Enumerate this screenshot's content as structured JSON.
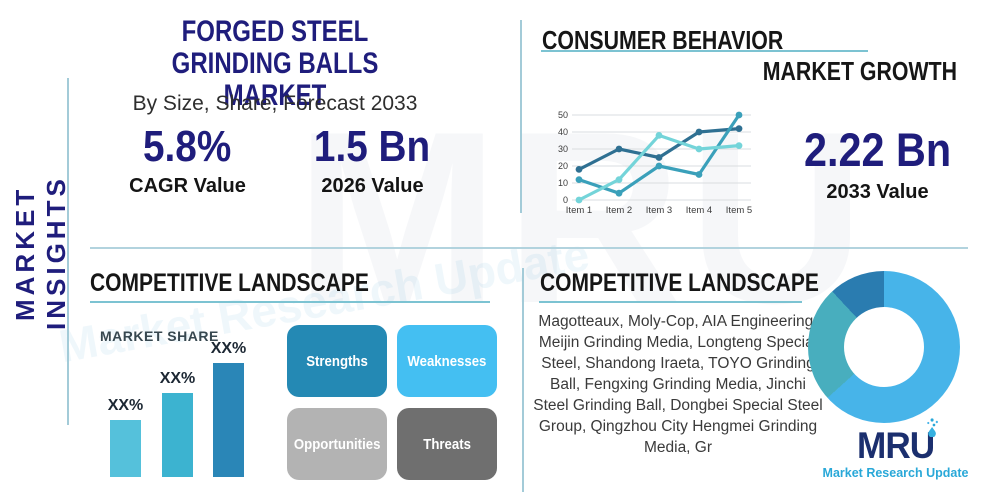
{
  "sidebar": {
    "vertical_label": "MARKET INSIGHTS"
  },
  "header": {
    "title_line1": "FORGED STEEL GRINDING BALLS",
    "title_line2": "MARKET",
    "subtitle": "By Size, Share, Forecast 2033"
  },
  "stats": {
    "cagr": {
      "value": "5.8%",
      "label": "CAGR Value"
    },
    "base_year": {
      "value": "1.5 Bn",
      "label": "2026 Value"
    },
    "forecast": {
      "value": "2.22 Bn",
      "label": "2033 Value"
    }
  },
  "sections": {
    "consumer_behavior": "CONSUMER BEHAVIOR",
    "market_growth": "MARKET GROWTH",
    "competitive_landscape_left": "COMPETITIVE LANDSCAPE",
    "competitive_landscape_right": "COMPETITIVE LANDSCAPE",
    "market_share": "MARKET SHARE"
  },
  "swot": {
    "items": [
      {
        "label": "Strengths",
        "color": "#2489b4"
      },
      {
        "label": "Weaknesses",
        "color": "#44bff2"
      },
      {
        "label": "Opportunities",
        "color": "#b3b3b3"
      },
      {
        "label": "Threats",
        "color": "#6f6f6f"
      }
    ]
  },
  "companies": {
    "text": "Magotteaux, Moly-Cop, AIA Engineering, Meijin Grinding Media, Longteng Special Steel, Shandong Iraeta, TOYO Grinding Ball, Fengxing Grinding Media, Jinchi Steel Grinding Ball, Dongbei Special Steel Group, Qingzhou City Hengmei Grinding Media, Gr"
  },
  "logo": {
    "text": "MRU",
    "tagline": "Market Research Update",
    "navy": "#1b2f6e",
    "teal": "#29a8d8"
  },
  "watermark": {
    "big_text": "MRU",
    "tagline": "Market Research Update"
  },
  "colors": {
    "accent_navy": "#1f1d7c",
    "heading_dark": "#161616",
    "teal_underline": "#7cc3d2",
    "divider_blue": "#b2d3de"
  },
  "chart_data": [
    {
      "type": "line",
      "title": "CONSUMER BEHAVIOR",
      "x": [
        "Item 1",
        "Item 2",
        "Item 3",
        "Item 4",
        "Item 5"
      ],
      "series": [
        {
          "name": "series-dark-blue",
          "color": "#2f7092",
          "values": [
            18,
            30,
            25,
            40,
            42
          ]
        },
        {
          "name": "series-teal",
          "color": "#3aa0ba",
          "values": [
            12,
            4,
            20,
            15,
            50
          ]
        },
        {
          "name": "series-light-cyan",
          "color": "#74d4d9",
          "values": [
            0,
            12,
            38,
            30,
            32
          ]
        }
      ],
      "ylim": [
        0,
        50
      ],
      "yticks": [
        0,
        10,
        20,
        30,
        40,
        50
      ],
      "grid": true,
      "legend": false
    },
    {
      "type": "bar",
      "title": "MARKET SHARE",
      "categories": [
        "XX%",
        "XX%",
        "XX%"
      ],
      "values": [
        25,
        37,
        50
      ],
      "ylim": [
        0,
        50
      ],
      "colors": [
        "#55c1db",
        "#3cb3d0",
        "#2a86b7"
      ]
    },
    {
      "type": "pie",
      "donut": true,
      "slices": [
        {
          "name": "segment-light-blue",
          "color": "#47b4e9",
          "start_deg": 0,
          "end_deg": 228,
          "pct_est": 63
        },
        {
          "name": "segment-teal",
          "color": "#48aebe",
          "start_deg": 228,
          "end_deg": 317,
          "pct_est": 25
        },
        {
          "name": "segment-dark-blue",
          "color": "#2a7cb0",
          "start_deg": 317,
          "end_deg": 360,
          "pct_est": 12
        }
      ],
      "legend": false
    }
  ]
}
